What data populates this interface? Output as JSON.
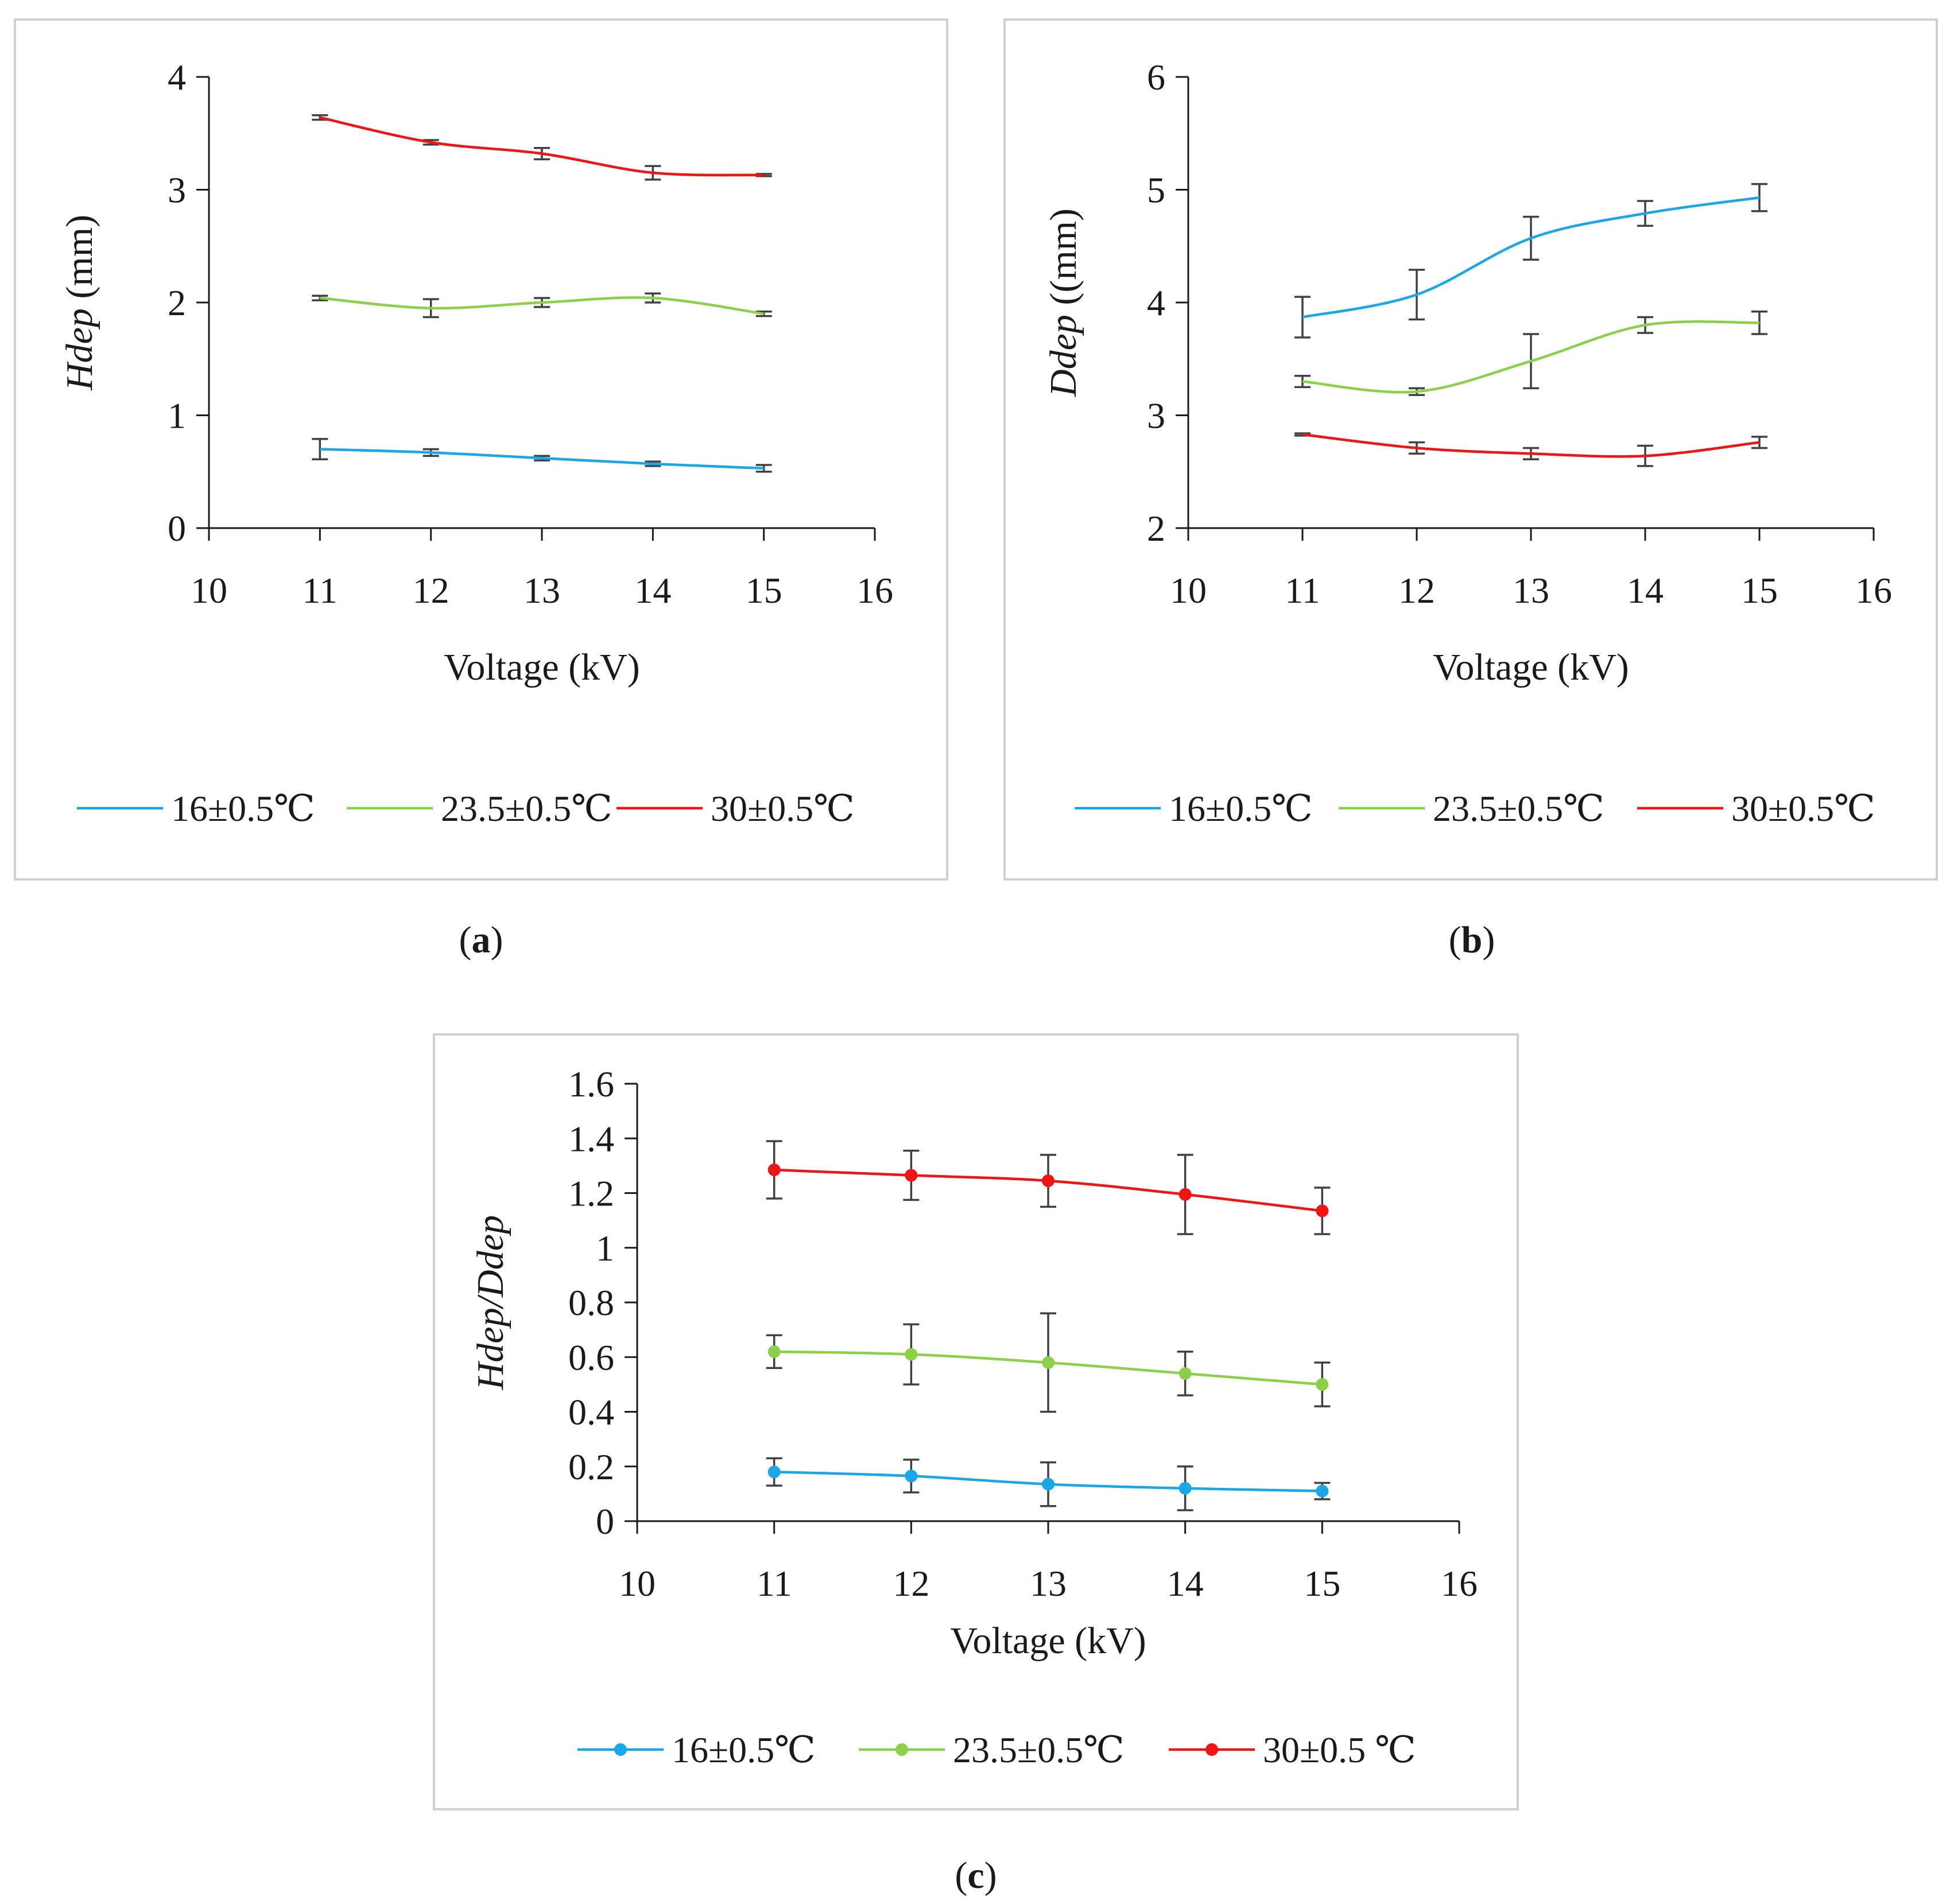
{
  "colors": {
    "s16": "#1aa7e8",
    "s23": "#8cd04a",
    "s30": "#f01414",
    "axis": "#1a1a1a",
    "error": "#404040",
    "frame": "#d0d0d0"
  },
  "captions": {
    "a": "a",
    "b": "b",
    "c": "c"
  },
  "chart_data": [
    {
      "id": "a",
      "type": "line",
      "title": "",
      "xlabel": "Voltage (kV)",
      "ylabel_italic": "Hdep",
      "ylabel_rest": " (mm)",
      "xlim": [
        10,
        16
      ],
      "ylim": [
        0,
        4
      ],
      "xticks": [
        "10",
        "11",
        "12",
        "13",
        "14",
        "15",
        "16"
      ],
      "yticks": [
        "0",
        "1",
        "2",
        "3",
        "4"
      ],
      "markers": false,
      "x": [
        11,
        12,
        13,
        14,
        15
      ],
      "legend_position": "bottom",
      "series": [
        {
          "name": "16±0.5℃",
          "color_key": "s16",
          "values": [
            0.7,
            0.67,
            0.62,
            0.57,
            0.53
          ],
          "errors": [
            0.09,
            0.03,
            0.02,
            0.02,
            0.03
          ]
        },
        {
          "name": "23.5±0.5℃",
          "color_key": "s23",
          "values": [
            2.04,
            1.95,
            2.0,
            2.04,
            1.9
          ],
          "errors": [
            0.02,
            0.08,
            0.04,
            0.04,
            0.02
          ]
        },
        {
          "name": "30±0.5℃",
          "color_key": "s30",
          "values": [
            3.64,
            3.42,
            3.32,
            3.15,
            3.13
          ],
          "errors": [
            0.02,
            0.02,
            0.05,
            0.06,
            0.01
          ]
        }
      ]
    },
    {
      "id": "b",
      "type": "line",
      "title": "",
      "xlabel": "Voltage (kV)",
      "ylabel_italic": "Ddep",
      "ylabel_rest": " ((mm)",
      "xlim": [
        10,
        16
      ],
      "ylim": [
        2,
        6
      ],
      "xticks": [
        "10",
        "11",
        "12",
        "13",
        "14",
        "15",
        "16"
      ],
      "yticks": [
        "2",
        "3",
        "4",
        "5",
        "6"
      ],
      "markers": false,
      "x": [
        11,
        12,
        13,
        14,
        15
      ],
      "legend_position": "bottom",
      "series": [
        {
          "name": "16±0.5℃",
          "color_key": "s16",
          "values": [
            3.87,
            4.07,
            4.57,
            4.79,
            4.93
          ],
          "errors": [
            0.18,
            0.22,
            0.19,
            0.11,
            0.12
          ]
        },
        {
          "name": "23.5±0.5℃",
          "color_key": "s23",
          "values": [
            3.3,
            3.21,
            3.48,
            3.8,
            3.82
          ],
          "errors": [
            0.05,
            0.03,
            0.24,
            0.07,
            0.1
          ]
        },
        {
          "name": "30±0.5℃",
          "color_key": "s30",
          "values": [
            2.83,
            2.71,
            2.66,
            2.64,
            2.76
          ],
          "errors": [
            0.01,
            0.05,
            0.05,
            0.09,
            0.05
          ]
        }
      ]
    },
    {
      "id": "c",
      "type": "line",
      "title": "",
      "xlabel": "Voltage (kV)",
      "ylabel_italic": "Hdep/Ddep",
      "ylabel_rest": "",
      "xlim": [
        10,
        16
      ],
      "ylim": [
        0,
        1.6
      ],
      "xticks": [
        "10",
        "11",
        "12",
        "13",
        "14",
        "15",
        "16"
      ],
      "yticks": [
        "0",
        "0.2",
        "0.4",
        "0.6",
        "0.8",
        "1",
        "1.2",
        "1.4",
        "1.6"
      ],
      "markers": true,
      "x": [
        11,
        12,
        13,
        14,
        15
      ],
      "legend_position": "bottom",
      "series": [
        {
          "name": "16±0.5℃",
          "color_key": "s16",
          "values": [
            0.18,
            0.165,
            0.135,
            0.12,
            0.11
          ],
          "errors": [
            0.05,
            0.06,
            0.08,
            0.08,
            0.03
          ]
        },
        {
          "name": "23.5±0.5℃",
          "color_key": "s23",
          "values": [
            0.62,
            0.61,
            0.58,
            0.54,
            0.5
          ],
          "errors": [
            0.06,
            0.11,
            0.18,
            0.08,
            0.08
          ]
        },
        {
          "name": "30±0.5 ℃",
          "color_key": "s30",
          "values": [
            1.285,
            1.265,
            1.245,
            1.195,
            1.135
          ],
          "errors": [
            0.105,
            0.09,
            0.095,
            0.145,
            0.085
          ]
        }
      ]
    }
  ]
}
